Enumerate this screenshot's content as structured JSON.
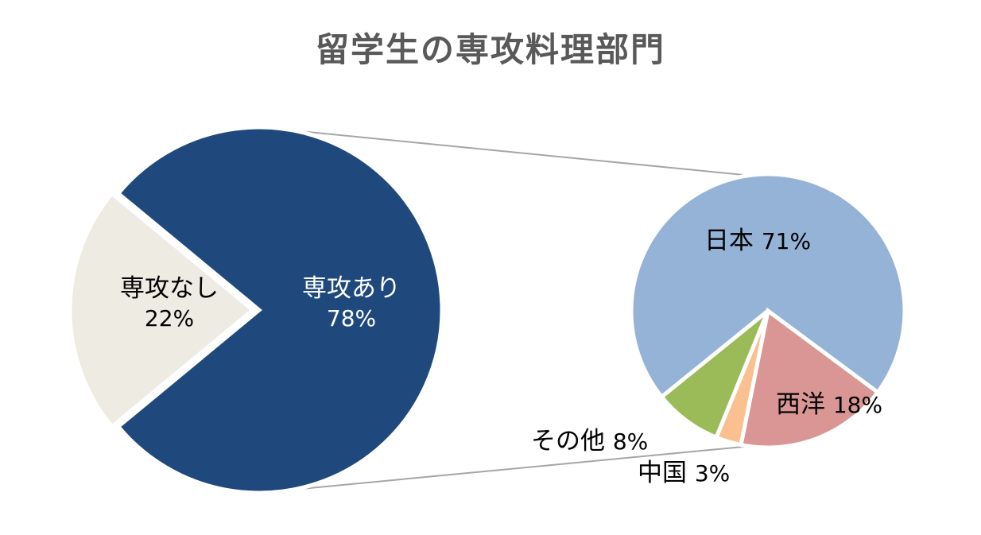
{
  "chart_data": [
    {
      "type": "pie",
      "title": "留学生の専攻料理部門",
      "slices": [
        {
          "label": "専攻なし",
          "value": 22,
          "display": "22%",
          "color": "#EEEBE3"
        },
        {
          "label": "専攻あり",
          "value": 78,
          "display": "78%",
          "color": "#1F497D"
        }
      ]
    },
    {
      "type": "pie",
      "slices": [
        {
          "label": "日本",
          "value": 71,
          "display": "71%",
          "color": "#95B3D7"
        },
        {
          "label": "西洋",
          "value": 18,
          "display": "18%",
          "color": "#D99694"
        },
        {
          "label": "中国",
          "value": 3,
          "display": "3%",
          "color": "#FAC090"
        },
        {
          "label": "その他",
          "value": 8,
          "display": "8%",
          "color": "#9BBB59"
        }
      ]
    }
  ],
  "connector_color": "#A6A6A6"
}
